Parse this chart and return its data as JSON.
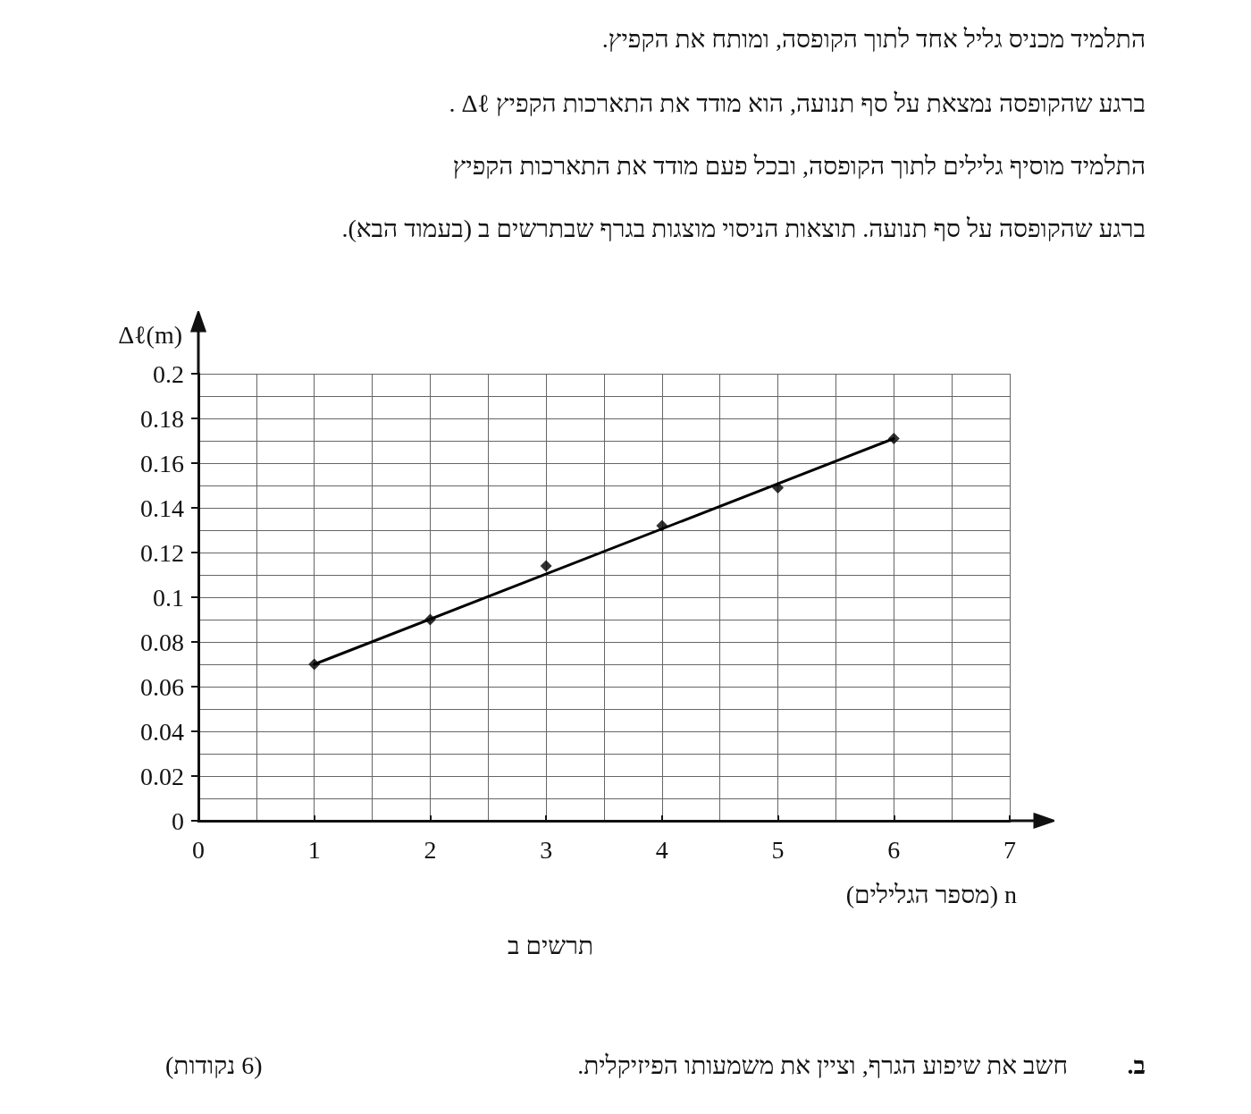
{
  "chart_data": {
    "type": "scatter",
    "xlabel": "n (מספר הגלילים)",
    "ylabel": "Δℓ(m)",
    "annotations": [
      "התלמיד מכניס גליל אחד לתוך הקופסה, ומותח את הקפיץ.",
      "ברגע שהקופסה נמצאת על סף תנועה, הוא מודד את התארכות הקפיץ  Δℓ .",
      "התלמיד מוסיף גלילים לתוך הקופסה, ובכל פעם מודד את התארכות הקפיץ",
      "ברגע שהקופסה על סף תנועה. תוצאות הניסוי מוצגות בגרף שבתרשים ב (בעמוד הבא).",
      "תרשים ב",
      "ב.",
      "חשב את שיפוע הגרף, וציין את משמעותו הפיזיקלית.",
      "(6 נקודות)"
    ],
    "series": [
      {
        "color": "#000000",
        "x": [
          1,
          2,
          3,
          4,
          5,
          6
        ],
        "values": [
          0.07,
          0.09,
          0.114,
          0.132,
          0.149,
          0.171
        ]
      },
      {
        "type": "line",
        "color": "#000000",
        "marker": "none",
        "line_style": "solid",
        "x": [
          1,
          6
        ],
        "values": [
          0.07,
          0.171
        ]
      }
    ],
    "marker": "diamond",
    "grid": true,
    "xlim": [
      0,
      7
    ],
    "xticks": [
      0,
      1,
      2,
      3,
      4,
      5,
      6,
      7
    ],
    "ylim": [
      0,
      0.2
    ],
    "yticks": [
      0,
      0.02,
      0.04,
      0.06,
      0.08,
      0.1,
      0.12,
      0.14,
      0.16,
      0.18,
      0.2
    ]
  }
}
